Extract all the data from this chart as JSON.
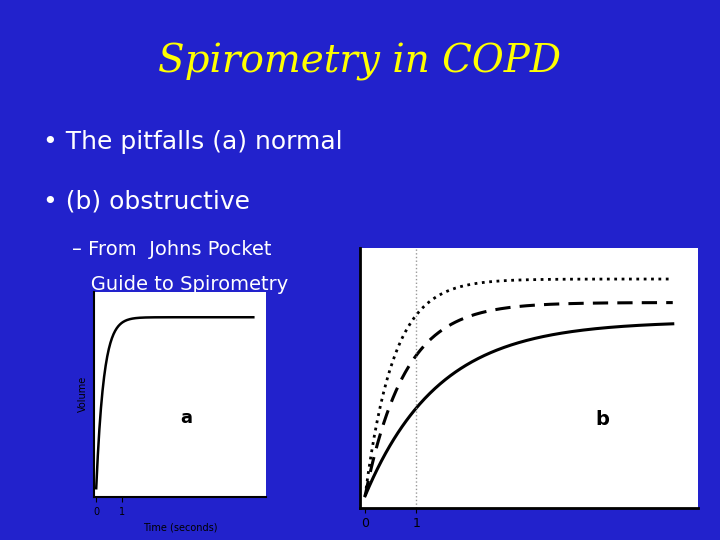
{
  "title": "Spirometry in COPD",
  "title_color": "#FFFF00",
  "title_fontsize": 28,
  "bg_color": "#2222CC",
  "bullet1": "The pitfalls (a) normal",
  "bullet2": "(b) obstructive",
  "sub_bullet_line1": "– From  Johns Pocket",
  "sub_bullet_line2": "   Guide to Spirometry",
  "text_color": "#FFFFFF",
  "bullet_fontsize": 18,
  "sub_bullet_fontsize": 14,
  "chart_a_label": "a",
  "chart_b_label": "b",
  "chart_bg": "#FFFFFF"
}
